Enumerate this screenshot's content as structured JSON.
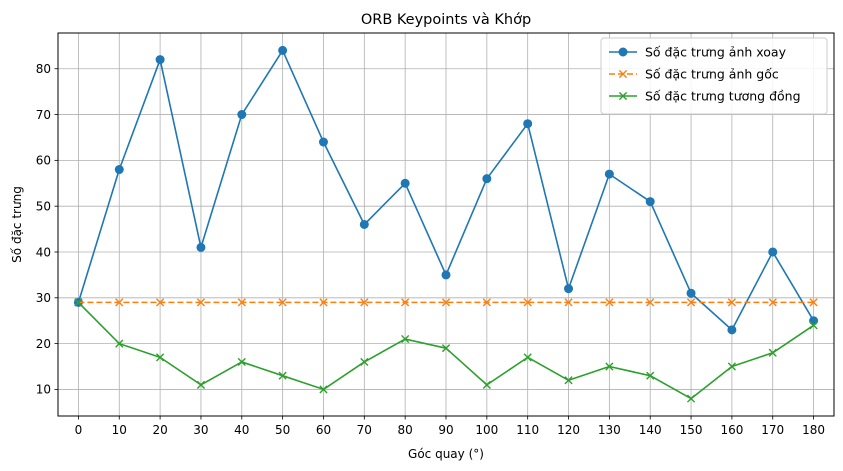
{
  "chart_data": {
    "type": "line",
    "title": "ORB Keypoints và Khớp",
    "xlabel": "Góc quay (°)",
    "ylabel": "Số đặc trưng",
    "x": [
      0,
      10,
      20,
      30,
      40,
      50,
      60,
      70,
      80,
      90,
      100,
      110,
      120,
      130,
      140,
      150,
      160,
      170,
      180
    ],
    "xlim": [
      -5,
      185
    ],
    "ylim": [
      4.2,
      87.8
    ],
    "xticks": [
      0,
      10,
      20,
      30,
      40,
      50,
      60,
      70,
      80,
      90,
      100,
      110,
      120,
      130,
      140,
      150,
      160,
      170,
      180
    ],
    "yticks": [
      10,
      20,
      30,
      40,
      50,
      60,
      70,
      80
    ],
    "grid": true,
    "legend_position": "top-right",
    "series": [
      {
        "name": "Số đặc trưng ảnh xoay",
        "color": "#1f77b4",
        "line_style": "solid",
        "marker": "circle",
        "values": [
          29,
          58,
          82,
          41,
          70,
          84,
          64,
          46,
          55,
          35,
          56,
          68,
          32,
          57,
          51,
          31,
          23,
          40,
          25
        ]
      },
      {
        "name": "Số đặc trưng ảnh gốc",
        "color": "#ff7f0e",
        "line_style": "dashed",
        "marker": "x",
        "values": [
          29,
          29,
          29,
          29,
          29,
          29,
          29,
          29,
          29,
          29,
          29,
          29,
          29,
          29,
          29,
          29,
          29,
          29,
          29
        ]
      },
      {
        "name": "Số đặc trưng tương đồng",
        "color": "#2ca02c",
        "line_style": "solid",
        "marker": "x",
        "values": [
          29,
          20,
          17,
          11,
          16,
          13,
          10,
          16,
          21,
          19,
          11,
          17,
          12,
          15,
          13,
          8,
          15,
          18,
          24
        ]
      }
    ]
  }
}
